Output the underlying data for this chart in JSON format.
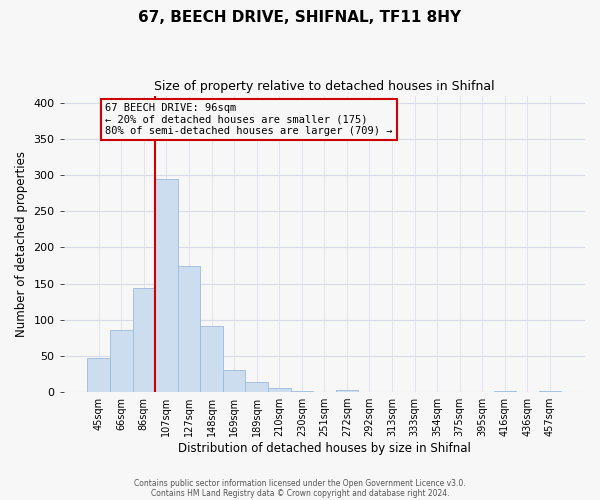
{
  "title1": "67, BEECH DRIVE, SHIFNAL, TF11 8HY",
  "title2": "Size of property relative to detached houses in Shifnal",
  "xlabel": "Distribution of detached houses by size in Shifnal",
  "ylabel": "Number of detached properties",
  "bin_labels": [
    "45sqm",
    "66sqm",
    "86sqm",
    "107sqm",
    "127sqm",
    "148sqm",
    "169sqm",
    "189sqm",
    "210sqm",
    "230sqm",
    "251sqm",
    "272sqm",
    "292sqm",
    "313sqm",
    "333sqm",
    "354sqm",
    "375sqm",
    "395sqm",
    "416sqm",
    "436sqm",
    "457sqm"
  ],
  "bar_values": [
    47,
    86,
    144,
    295,
    175,
    91,
    30,
    14,
    5,
    2,
    0,
    3,
    0,
    0,
    0,
    0,
    0,
    0,
    2,
    0,
    2
  ],
  "bar_color": "#ccddf0",
  "bar_edgecolor": "#9bbbd8",
  "vline_color": "#cc0000",
  "annotation_title": "67 BEECH DRIVE: 96sqm",
  "annotation_line1": "← 20% of detached houses are smaller (175)",
  "annotation_line2": "80% of semi-detached houses are larger (709) →",
  "annotation_box_edgecolor": "#cc0000",
  "ylim": [
    0,
    410
  ],
  "yticks": [
    0,
    50,
    100,
    150,
    200,
    250,
    300,
    350,
    400
  ],
  "footer1": "Contains HM Land Registry data © Crown copyright and database right 2024.",
  "footer2": "Contains public sector information licensed under the Open Government Licence v3.0.",
  "bg_color": "#f7f7f7",
  "grid_color": "#d8dce8"
}
